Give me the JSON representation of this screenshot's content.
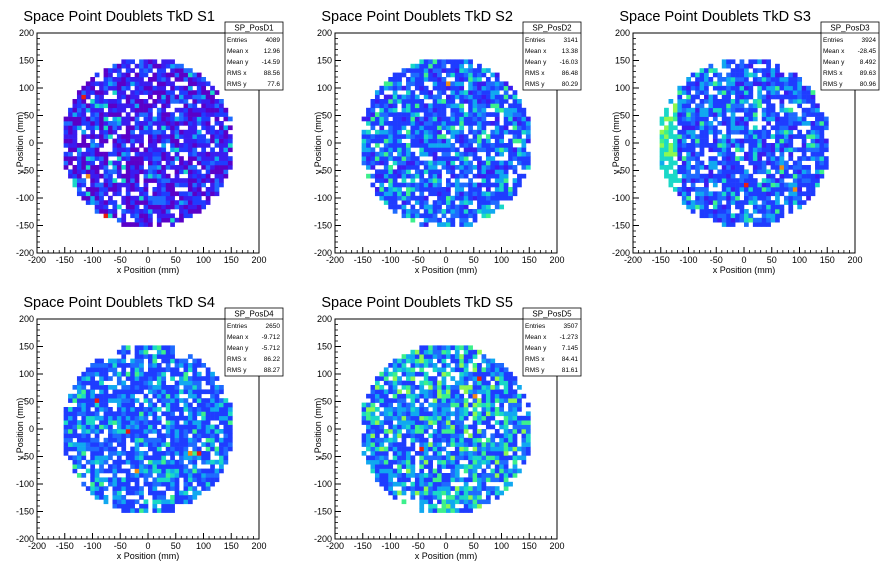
{
  "palette": [
    "#5a00c8",
    "#3a1cf0",
    "#1f3cff",
    "#1e6bff",
    "#10a8f0",
    "#19d8c8",
    "#3cf08c",
    "#8cf850",
    "#f0e628",
    "#f08c14",
    "#e81e10"
  ],
  "stats_labels": [
    "Entries",
    "Mean x",
    "Mean y",
    "RMS x",
    "RMS y"
  ],
  "chart_data": [
    {
      "type": "heatmap",
      "title": "Space Point Doublets TkD S1",
      "xlabel": "x Position (mm)",
      "ylabel": "y Position (mm)",
      "xlim": [
        -200,
        200
      ],
      "ylim": [
        -200,
        200
      ],
      "x_ticks": [
        "-200",
        "-150",
        "-100",
        "-50",
        "0",
        "50",
        "100",
        "150",
        "200"
      ],
      "y_ticks": [
        "-200",
        "-150",
        "-100",
        "-50",
        "0",
        "50",
        "100",
        "150",
        "200"
      ],
      "stats": {
        "name": "SP_PosD1",
        "values": [
          "4089",
          "12.96",
          "-14.59",
          "88.56",
          "77.6"
        ]
      },
      "dominant": "violet-blue",
      "occupied_radius_mm": 155
    },
    {
      "type": "heatmap",
      "title": "Space Point Doublets TkD S2",
      "xlabel": "x Position (mm)",
      "ylabel": "y Position (mm)",
      "xlim": [
        -200,
        200
      ],
      "ylim": [
        -200,
        200
      ],
      "x_ticks": [
        "-200",
        "-150",
        "-100",
        "-50",
        "0",
        "50",
        "100",
        "150",
        "200"
      ],
      "y_ticks": [
        "-200",
        "-150",
        "-100",
        "-50",
        "0",
        "50",
        "100",
        "150",
        "200"
      ],
      "stats": {
        "name": "SP_PosD2",
        "values": [
          "3141",
          "13.38",
          "-16.03",
          "86.48",
          "80.29"
        ]
      },
      "dominant": "blue",
      "occupied_radius_mm": 155
    },
    {
      "type": "heatmap",
      "title": "Space Point Doublets TkD S3",
      "xlabel": "x Position (mm)",
      "ylabel": "y Position (mm)",
      "xlim": [
        -200,
        200
      ],
      "ylim": [
        -200,
        200
      ],
      "x_ticks": [
        "-200",
        "-150",
        "-100",
        "-50",
        "0",
        "50",
        "100",
        "150",
        "200"
      ],
      "y_ticks": [
        "-200",
        "-150",
        "-100",
        "-50",
        "0",
        "50",
        "100",
        "150",
        "200"
      ],
      "stats": {
        "name": "SP_PosD3",
        "values": [
          "3924",
          "-28.45",
          "8.492",
          "89.63",
          "80.96"
        ]
      },
      "dominant": "blue",
      "occupied_radius_mm": 155
    },
    {
      "type": "heatmap",
      "title": "Space Point Doublets TkD S4",
      "xlabel": "x Position (mm)",
      "ylabel": "y Position (mm)",
      "xlim": [
        -200,
        200
      ],
      "ylim": [
        -200,
        200
      ],
      "x_ticks": [
        "-200",
        "-150",
        "-100",
        "-50",
        "0",
        "50",
        "100",
        "150",
        "200"
      ],
      "y_ticks": [
        "-200",
        "-150",
        "-100",
        "-50",
        "0",
        "50",
        "100",
        "150",
        "200"
      ],
      "stats": {
        "name": "SP_PosD4",
        "values": [
          "2650",
          "-9.712",
          "-5.712",
          "86.22",
          "88.27"
        ]
      },
      "dominant": "blue-white",
      "occupied_radius_mm": 155
    },
    {
      "type": "heatmap",
      "title": "Space Point Doublets TkD S5",
      "xlabel": "x Position (mm)",
      "ylabel": "y Position (mm)",
      "xlim": [
        -200,
        200
      ],
      "ylim": [
        -200,
        200
      ],
      "x_ticks": [
        "-200",
        "-150",
        "-100",
        "-50",
        "0",
        "50",
        "100",
        "150",
        "200"
      ],
      "y_ticks": [
        "-200",
        "-150",
        "-100",
        "-50",
        "0",
        "50",
        "100",
        "150",
        "200"
      ],
      "stats": {
        "name": "SP_PosD5",
        "values": [
          "3507",
          "-1.273",
          "7.145",
          "84.41",
          "81.61"
        ]
      },
      "dominant": "cyan-green",
      "occupied_radius_mm": 155
    }
  ]
}
